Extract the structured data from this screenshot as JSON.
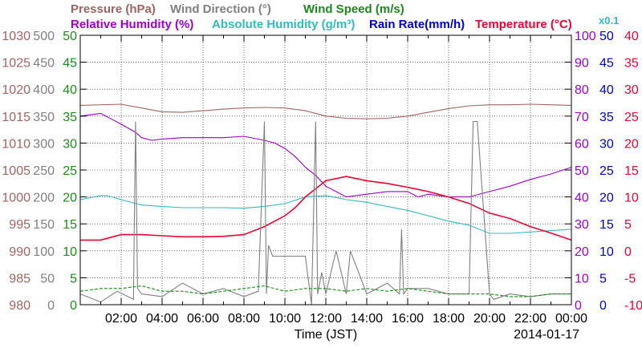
{
  "chart_data": {
    "type": "line",
    "date": "2014-01-17",
    "xlabel": "Time (JST)",
    "x_tick_labels": [
      "02:00",
      "04:00",
      "06:00",
      "08:00",
      "10:00",
      "12:00",
      "14:00",
      "16:00",
      "18:00",
      "20:00",
      "22:00",
      "00:00"
    ],
    "x_range_hours": [
      0,
      24
    ],
    "grid": true,
    "titles": {
      "pressure": "Pressure (hPa)",
      "wind_direction": "Wind Direction (°)",
      "wind_speed": "Wind Speed (m/s)",
      "relative_humidity": "Relative Humidity (%)",
      "absolute_humidity": "Absolute Humidity (g/m³)",
      "rain_rate": "Rain Rate(mm/h)",
      "temperature": "Temperature (°C)",
      "abs_humidity_scale": "x0.1"
    },
    "colors": {
      "pressure": "#a06464",
      "wind_direction": "#808080",
      "wind_speed": "#1a8a1a",
      "relative_humidity": "#9900cc",
      "absolute_humidity": "#33bbbb",
      "rain_rate": "#0000cc",
      "temperature": "#ee0033"
    },
    "axes": {
      "pressure": {
        "range": [
          980,
          1030
        ],
        "ticks": [
          "1030",
          "1025",
          "1020",
          "1015",
          "1010",
          "1005",
          "1000",
          "995",
          "990",
          "985",
          "980"
        ]
      },
      "wind_direction": {
        "range": [
          0,
          500
        ],
        "ticks": [
          "500",
          "450",
          "400",
          "350",
          "300",
          "250",
          "200",
          "150",
          "100",
          "50",
          "0"
        ]
      },
      "wind_speed": {
        "range": [
          0,
          50
        ],
        "ticks": [
          "50",
          "45",
          "40",
          "35",
          "30",
          "25",
          "20",
          "15",
          "10",
          "5",
          "0"
        ]
      },
      "relative_humidity": {
        "range": [
          0,
          100
        ],
        "ticks": [
          "100",
          "90",
          "80",
          "70",
          "60",
          "50",
          "40",
          "30",
          "20",
          "10",
          "0"
        ]
      },
      "rain_rate": {
        "range": [
          0,
          50
        ],
        "ticks": [
          "50",
          "45",
          "40",
          "35",
          "30",
          "25",
          "20",
          "15",
          "10",
          "5",
          "0"
        ]
      },
      "temperature": {
        "range": [
          -10,
          40
        ],
        "ticks": [
          "40",
          "35",
          "30",
          "25",
          "20",
          "15",
          "10",
          "5",
          "0",
          "-5",
          "-10"
        ]
      }
    },
    "series": [
      {
        "name": "Pressure (hPa)",
        "key": "pressure",
        "axis": "pressure",
        "x": [
          0,
          2,
          3,
          4,
          5,
          6,
          7,
          8,
          9,
          10,
          11,
          12,
          13,
          14,
          15,
          16,
          17,
          18,
          19,
          20,
          21,
          22,
          23,
          24
        ],
        "values": [
          1017,
          1017.2,
          1016.5,
          1015.8,
          1015.7,
          1016,
          1016.3,
          1016.5,
          1016.6,
          1016.5,
          1016,
          1015,
          1014.6,
          1014.5,
          1014.6,
          1015,
          1015.7,
          1016.4,
          1016.9,
          1017.1,
          1017.1,
          1017.2,
          1017.1,
          1017
        ]
      },
      {
        "name": "Relative Humidity (%)",
        "key": "relative_humidity",
        "axis": "relative_humidity",
        "x": [
          0,
          1,
          1.5,
          2,
          2.7,
          3,
          3.5,
          4,
          5,
          6,
          7,
          8,
          9,
          9.5,
          10,
          10.5,
          11,
          11.5,
          12,
          12.5,
          13,
          14,
          15,
          16,
          16.5,
          17,
          18,
          19,
          20,
          21,
          22,
          23,
          24
        ],
        "values": [
          70,
          71,
          69,
          67,
          64,
          62,
          61,
          61.5,
          62,
          62,
          62,
          62.5,
          61,
          60,
          58,
          55,
          51,
          48,
          44,
          42,
          40,
          41,
          42,
          42,
          40,
          41,
          40,
          40,
          42,
          44,
          46.5,
          48.5,
          51
        ]
      },
      {
        "name": "Absolute Humidity (g/m³)",
        "key": "absolute_humidity",
        "axis": "relative_humidity",
        "x": [
          0,
          1,
          1.3,
          2,
          3,
          4,
          5,
          6,
          7,
          8,
          9,
          10,
          11,
          12,
          12.5,
          13,
          14,
          15,
          16,
          17,
          18,
          19,
          20,
          21,
          22,
          23,
          24
        ],
        "values": [
          39,
          40.5,
          40.5,
          39,
          37,
          36.5,
          36,
          36,
          36,
          35.8,
          36.5,
          37.5,
          40,
          40.5,
          39.8,
          39,
          38,
          36.5,
          35,
          33,
          31,
          29.5,
          26.5,
          26.5,
          27,
          27.5,
          28
        ]
      },
      {
        "name": "Temperature (°C)",
        "key": "temperature",
        "axis": "temperature",
        "x": [
          0,
          1,
          2,
          3,
          4,
          5,
          6,
          7,
          8,
          9,
          10,
          10.5,
          11,
          11.5,
          12,
          13,
          14,
          15,
          16,
          17,
          18,
          19,
          20,
          21,
          22,
          23,
          24
        ],
        "values": [
          2,
          2,
          3,
          3,
          2.8,
          2.6,
          2.6,
          2.7,
          3,
          4.5,
          6.5,
          8,
          10,
          11.5,
          13,
          13.8,
          13,
          12.5,
          11.8,
          11,
          10,
          8.8,
          7,
          6,
          4.5,
          3.3,
          2
        ]
      },
      {
        "name": "Wind Direction (°)",
        "key": "wind_direction",
        "axis": "wind_direction",
        "x": [
          0,
          1,
          1.8,
          2.6,
          2.7,
          2.8,
          3,
          4,
          5,
          6,
          7,
          8,
          8.7,
          9,
          9.1,
          9.2,
          9.4,
          10,
          11,
          11.3,
          11.5,
          11.6,
          11.8,
          12,
          12.5,
          13,
          13.2,
          14,
          15,
          15.6,
          15.7,
          15.8,
          16,
          17,
          18,
          18.5,
          19,
          19.2,
          19.4,
          20,
          20.2,
          21,
          22,
          23,
          24
        ],
        "values": [
          20,
          5,
          25,
          10,
          340,
          30,
          20,
          15,
          40,
          20,
          30,
          15,
          25,
          340,
          20,
          110,
          90,
          90,
          90,
          0,
          340,
          20,
          60,
          20,
          100,
          20,
          100,
          20,
          40,
          20,
          140,
          20,
          30,
          30,
          20,
          20,
          20,
          340,
          340,
          20,
          10,
          20,
          15,
          20,
          20
        ]
      },
      {
        "name": "Wind Speed (m/s)",
        "key": "wind_speed",
        "axis": "wind_speed",
        "x": [
          0,
          1,
          2,
          3,
          4,
          5,
          6,
          7,
          8,
          9,
          10,
          11,
          12,
          13,
          14,
          15,
          16,
          17,
          18,
          19,
          20,
          21,
          22,
          23,
          24
        ],
        "values": [
          2.5,
          3,
          3,
          3.5,
          2.5,
          2.5,
          2,
          2.5,
          3,
          3.5,
          2.5,
          3,
          3,
          2.5,
          3,
          2.5,
          3,
          2.5,
          2,
          2,
          2,
          1.5,
          1.5,
          2,
          2
        ]
      },
      {
        "name": "Rain Rate(mm/h)",
        "key": "rain_rate",
        "axis": "rain_rate",
        "x": [
          0,
          24
        ],
        "values": [
          0,
          0
        ]
      }
    ]
  }
}
